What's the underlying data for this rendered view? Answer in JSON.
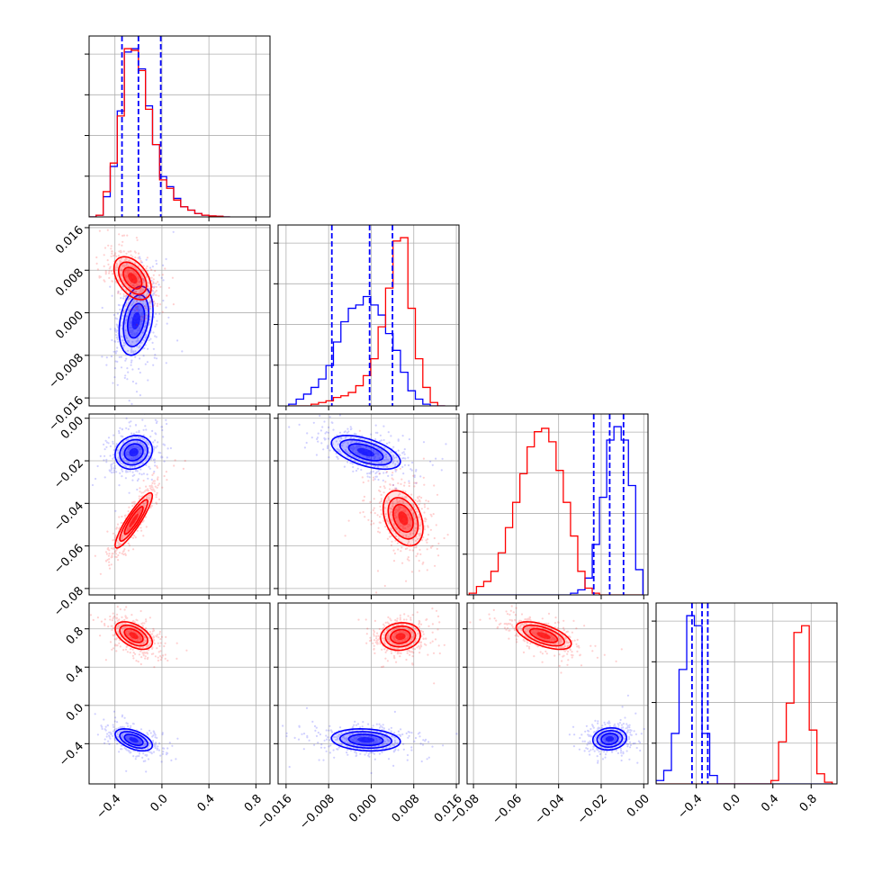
{
  "chart_data": {
    "type": "corner",
    "colors": {
      "series_a": "#0000ff",
      "series_b": "#ff0000",
      "grid": "#b0b0b0",
      "axis": "#000000"
    },
    "grid": true,
    "series": [
      {
        "color": "#0000ff",
        "role": "blue samples"
      },
      {
        "color": "#ff0000",
        "role": "red samples"
      }
    ],
    "params": [
      {
        "range": [
          -0.62,
          0.92
        ],
        "ticks": [
          -0.4,
          0.0,
          0.4,
          0.8
        ],
        "tick_labels": [
          "−0.4",
          "0.0",
          "0.4",
          "0.8"
        ]
      },
      {
        "range": [
          -0.0175,
          0.0165
        ],
        "ticks": [
          -0.016,
          -0.008,
          0.0,
          0.008,
          0.016
        ],
        "tick_labels": [
          "−0.016",
          "−0.008",
          "0.000",
          "0.008",
          "0.016"
        ]
      },
      {
        "range": [
          -0.083,
          0.002
        ],
        "ticks": [
          -0.08,
          -0.06,
          -0.04,
          -0.02,
          0.0
        ],
        "tick_labels": [
          "−0.08",
          "−0.06",
          "−0.04",
          "−0.02",
          "0.00"
        ]
      },
      {
        "range": [
          -0.82,
          1.07
        ],
        "ticks": [
          -0.4,
          0.0,
          0.4,
          0.8
        ],
        "tick_labels": [
          "−0.4",
          "0.0",
          "0.4",
          "0.8"
        ]
      }
    ],
    "y_tick_labels": [
      {
        "row": 1,
        "ticks": [
          -0.016,
          -0.008,
          0.0,
          0.008,
          0.016
        ],
        "labels": [
          "−0.016",
          "−0.008",
          "0.000",
          "0.008",
          "0.016"
        ]
      },
      {
        "row": 2,
        "ticks": [
          -0.08,
          -0.06,
          -0.04,
          -0.02,
          0.0
        ],
        "labels": [
          "−0.08",
          "−0.06",
          "−0.04",
          "−0.02",
          "0.00"
        ]
      },
      {
        "row": 3,
        "ticks": [
          -0.4,
          0.0,
          0.4,
          0.8
        ],
        "labels": [
          "−0.4",
          "0.0",
          "0.4",
          "0.8"
        ]
      }
    ],
    "diagonal_hist": [
      {
        "param": 0,
        "bin_edges": [
          -0.62,
          -0.56,
          -0.5,
          -0.44,
          -0.38,
          -0.32,
          -0.26,
          -0.2,
          -0.14,
          -0.08,
          -0.02,
          0.04,
          0.1,
          0.16,
          0.22,
          0.28,
          0.34,
          0.4,
          0.46,
          0.52,
          0.58
        ],
        "blue": [
          0,
          0.01,
          0.12,
          0.3,
          0.63,
          0.98,
          1.0,
          0.88,
          0.66,
          0.43,
          0.24,
          0.18,
          0.11,
          0.06,
          0.04,
          0.02,
          0.01,
          0.005,
          0.003,
          0
        ],
        "red": [
          0,
          0.01,
          0.15,
          0.32,
          0.6,
          1.0,
          0.99,
          0.87,
          0.64,
          0.43,
          0.22,
          0.17,
          0.1,
          0.06,
          0.04,
          0.02,
          0.01,
          0.006,
          0.004,
          0
        ],
        "quantiles_blue": [
          -0.34,
          -0.2,
          -0.01
        ]
      },
      {
        "param": 1,
        "bin_edges": [
          -0.0155,
          -0.0141,
          -0.0127,
          -0.0113,
          -0.0099,
          -0.0085,
          -0.0071,
          -0.0057,
          -0.0043,
          -0.0029,
          -0.0015,
          -0.0001,
          0.0013,
          0.0027,
          0.0041,
          0.0055,
          0.0069,
          0.0083,
          0.0097,
          0.0111,
          0.0125,
          0.0139
        ],
        "blue": [
          0.01,
          0.04,
          0.07,
          0.11,
          0.16,
          0.24,
          0.38,
          0.5,
          0.58,
          0.6,
          0.65,
          0.6,
          0.54,
          0.43,
          0.33,
          0.2,
          0.09,
          0.04,
          0.01,
          0.0,
          0.0
        ],
        "red": [
          0.0,
          0.0,
          0.0,
          0.01,
          0.02,
          0.03,
          0.05,
          0.06,
          0.08,
          0.12,
          0.18,
          0.28,
          0.47,
          0.7,
          0.98,
          1.0,
          0.58,
          0.28,
          0.11,
          0.02,
          0.0
        ],
        "quantiles_blue": [
          -0.0074,
          -0.0003,
          0.004
        ]
      },
      {
        "param": 2,
        "bin_edges": [
          -0.082,
          -0.0786,
          -0.0752,
          -0.0718,
          -0.0684,
          -0.065,
          -0.0616,
          -0.0582,
          -0.0548,
          -0.0514,
          -0.048,
          -0.0446,
          -0.0412,
          -0.0378,
          -0.0344,
          -0.031,
          -0.0276,
          -0.0242,
          -0.0208,
          -0.0174,
          -0.014,
          -0.0106,
          -0.0072,
          -0.0038,
          -0.0004
        ],
        "blue": [
          0,
          0,
          0,
          0,
          0,
          0,
          0,
          0,
          0,
          0,
          0,
          0,
          0,
          0,
          0.01,
          0.03,
          0.1,
          0.3,
          0.58,
          0.92,
          1.0,
          0.92,
          0.65,
          0.15
        ],
        "red": [
          0.01,
          0.05,
          0.08,
          0.14,
          0.25,
          0.4,
          0.55,
          0.72,
          0.88,
          0.97,
          0.99,
          0.91,
          0.74,
          0.55,
          0.35,
          0.14,
          0.04,
          0.01,
          0,
          0,
          0,
          0,
          0,
          0
        ],
        "quantiles_blue": [
          -0.0235,
          -0.016,
          -0.0095
        ]
      },
      {
        "param": 3,
        "bin_edges": [
          -0.82,
          -0.74,
          -0.66,
          -0.58,
          -0.5,
          -0.42,
          -0.34,
          -0.26,
          -0.18,
          -0.1,
          -0.02,
          0.06,
          0.14,
          0.22,
          0.3,
          0.38,
          0.46,
          0.54,
          0.62,
          0.7,
          0.78,
          0.86,
          0.94,
          1.02
        ],
        "blue": [
          0.02,
          0.08,
          0.3,
          0.68,
          1.0,
          0.94,
          0.3,
          0.05,
          0.0,
          0,
          0,
          0,
          0,
          0,
          0,
          0,
          0,
          0,
          0,
          0,
          0,
          0,
          0
        ],
        "red": [
          0,
          0,
          0,
          0,
          0,
          0,
          0,
          0,
          0,
          0.0,
          0.0,
          0.0,
          0.0,
          0.0,
          0.0,
          0.02,
          0.25,
          0.48,
          0.9,
          0.94,
          0.32,
          0.06,
          0.01
        ],
        "quantiles_blue": [
          -0.445,
          -0.34,
          -0.28
        ]
      }
    ],
    "pair_panels": [
      {
        "row": 1,
        "col": 0,
        "blue": {
          "mean": [
            -0.22,
            -0.0015
          ],
          "sd": [
            0.1,
            0.0045
          ],
          "rho": 0.3
        },
        "red": {
          "mean": [
            -0.25,
            0.0065
          ],
          "sd": [
            0.11,
            0.0028
          ],
          "rho": -0.45
        }
      },
      {
        "row": 2,
        "col": 0,
        "blue": {
          "mean": [
            -0.24,
            -0.016
          ],
          "sd": [
            0.11,
            0.0055
          ],
          "rho": 0.15
        },
        "red": {
          "mean": [
            -0.24,
            -0.048
          ],
          "sd": [
            0.11,
            0.009
          ],
          "rho": 0.9
        }
      },
      {
        "row": 2,
        "col": 1,
        "blue": {
          "mean": [
            -0.001,
            -0.016
          ],
          "sd": [
            0.0045,
            0.0055
          ],
          "rho": -0.55
        },
        "red": {
          "mean": [
            0.006,
            -0.047
          ],
          "sd": [
            0.0026,
            0.009
          ],
          "rho": -0.35
        }
      },
      {
        "row": 3,
        "col": 0,
        "blue": {
          "mean": [
            -0.24,
            -0.36
          ],
          "sd": [
            0.11,
            0.08
          ],
          "rho": -0.5
        },
        "red": {
          "mean": [
            -0.24,
            0.73
          ],
          "sd": [
            0.11,
            0.1
          ],
          "rho": -0.5
        }
      },
      {
        "row": 3,
        "col": 1,
        "blue": {
          "mean": [
            -0.001,
            -0.36
          ],
          "sd": [
            0.0045,
            0.08
          ],
          "rho": -0.15
        },
        "red": {
          "mean": [
            0.0055,
            0.72
          ],
          "sd": [
            0.0026,
            0.1
          ],
          "rho": 0.1
        }
      },
      {
        "row": 3,
        "col": 2,
        "blue": {
          "mean": [
            -0.016,
            -0.35
          ],
          "sd": [
            0.0055,
            0.08
          ],
          "rho": 0.1
        },
        "red": {
          "mean": [
            -0.047,
            0.73
          ],
          "sd": [
            0.009,
            0.1
          ],
          "rho": -0.6
        }
      }
    ],
    "contour_levels_sigma": [
      0.5,
      1.0,
      1.5,
      2.0
    ]
  }
}
